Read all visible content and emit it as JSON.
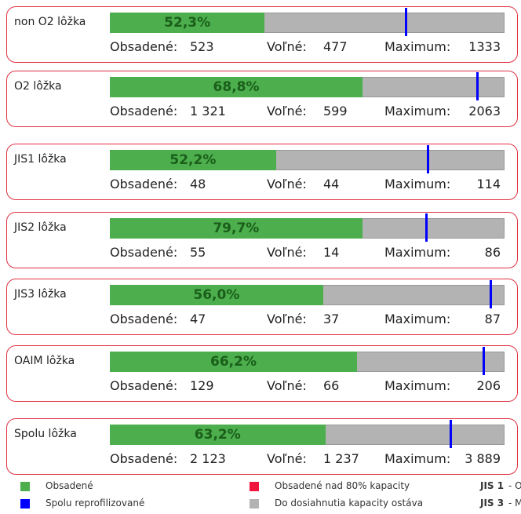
{
  "labels": {
    "occupied": "Obsadené:",
    "free": "Voľné:",
    "max": "Maximum:"
  },
  "cards": [
    {
      "title": "non O2 lôžka",
      "percent": {
        "value": 52.3,
        "label": "52,3%"
      },
      "occupied": 523,
      "free": 477,
      "maximum": {
        "value": 1333,
        "label": "1333"
      }
    },
    {
      "title": "O2 lôžka",
      "percent": {
        "value": 68.8,
        "label": "68,8%"
      },
      "occupied": {
        "value": 1321,
        "label": "1 321"
      },
      "free": 599,
      "maximum": {
        "value": 2063,
        "label": "2063"
      }
    },
    {
      "title": "JIS1 lôžka",
      "percent": {
        "value": 52.2,
        "label": "52,2%"
      },
      "occupied": 48,
      "free": 44,
      "maximum": 114
    },
    {
      "title": "JIS2 lôžka",
      "percent": {
        "value": 79.7,
        "label": "79,7%"
      },
      "occupied": 55,
      "free": 14,
      "maximum": 86
    },
    {
      "title": "JIS3 lôžka",
      "percent": {
        "value": 56.0,
        "label": "56,0%"
      },
      "occupied": 47,
      "free": 37,
      "maximum": 87
    },
    {
      "title": "OAIM lôžka",
      "percent": {
        "value": 66.2,
        "label": "66,2%"
      },
      "occupied": 129,
      "free": 66,
      "maximum": 206
    },
    {
      "title": "Spolu lôžka",
      "percent": {
        "value": 63.2,
        "label": "63,2%"
      },
      "occupied": {
        "value": 2123,
        "label": "2 123"
      },
      "free": {
        "value": 1237,
        "label": "1 237"
      },
      "maximum": {
        "value": 3889,
        "label": "3 889"
      }
    }
  ],
  "legend": [
    {
      "label": "Obsadené",
      "color": "#4cae4c"
    },
    {
      "label": "Spolu reprofilizované",
      "color": "#0000ff"
    },
    {
      "label": "Obsadené nad 80% kapacity",
      "color": "#f0143c"
    },
    {
      "label": "Do dosiahnutia kapacity ostáva",
      "color": "#b3b3b3"
    }
  ],
  "notes": [
    {
      "key": "JIS 1",
      "text": "- O"
    },
    {
      "key": "JIS 3",
      "text": "- M"
    }
  ],
  "colors": {
    "occupied": "#4cae4c",
    "rest": "#b3b3b3",
    "marker": "#0000ff",
    "border": "#e03040"
  }
}
